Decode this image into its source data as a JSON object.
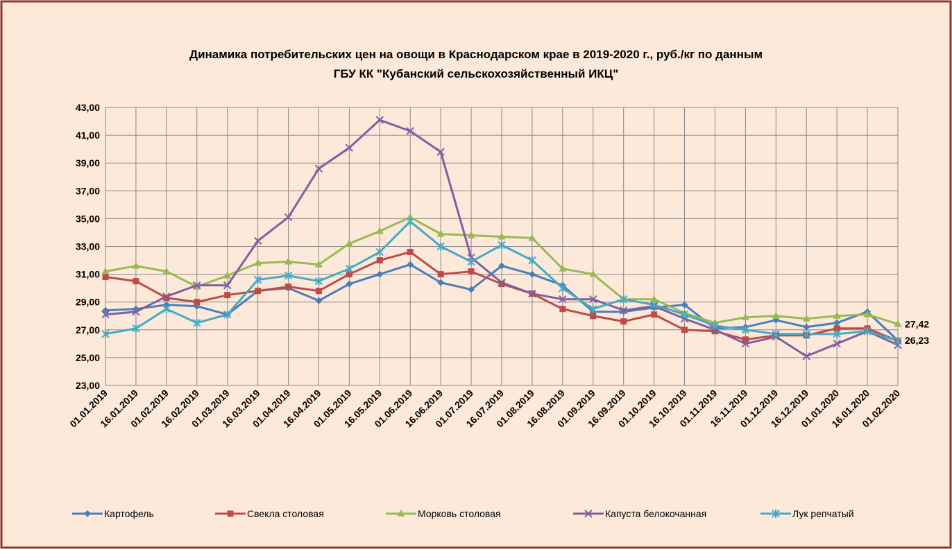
{
  "chart_data": {
    "type": "line",
    "title": [
      "Динамика потребительских цен на овощи в Краснодарском крае в 2019-2020 г., руб./кг по данным",
      "ГБУ КК \"Кубанский сельскохозяйственный ИКЦ\""
    ],
    "categories": [
      "01.01.2019",
      "16.01.2019",
      "01.02.2019",
      "16.02.2019",
      "01.03.2019",
      "16.03.2019",
      "01.04.2019",
      "16.04.2019",
      "01.05.2019",
      "16.05.2019",
      "01.06.2019",
      "16.06.2019",
      "01.07.2019",
      "16.07.2019",
      "01.08.2019",
      "16.08.2019",
      "01.09.2019",
      "16.09.2019",
      "01.10.2019",
      "16.10.2019",
      "01.11.2019",
      "16.11.2019",
      "01.12.2019",
      "16.12.2019",
      "01.01.2020",
      "16.01.2020",
      "01.02.2020"
    ],
    "ylim": [
      23,
      43
    ],
    "yticks": [
      {
        "value": 23,
        "label": "23,00"
      },
      {
        "value": 25,
        "label": "25,00"
      },
      {
        "value": 27,
        "label": "27,00"
      },
      {
        "value": 29,
        "label": "29,00"
      },
      {
        "value": 31,
        "label": "31,00"
      },
      {
        "value": 33,
        "label": "33,00"
      },
      {
        "value": 35,
        "label": "35,00"
      },
      {
        "value": 37,
        "label": "37,00"
      },
      {
        "value": 39,
        "label": "39,00"
      },
      {
        "value": 41,
        "label": "41,00"
      },
      {
        "value": 43,
        "label": "43,00"
      }
    ],
    "grid": true,
    "series": [
      {
        "name": "Картофель",
        "color": "#4a7ebb",
        "marker": "diamond",
        "values": [
          28.4,
          28.5,
          28.8,
          28.7,
          28.1,
          29.8,
          30.0,
          29.1,
          30.3,
          31.0,
          31.7,
          30.4,
          29.9,
          31.6,
          31.0,
          30.2,
          28.3,
          28.3,
          28.6,
          28.8,
          27.1,
          27.2,
          27.7,
          27.2,
          27.5,
          28.3,
          26.23
        ],
        "value_labels": [
          null,
          null,
          null,
          null,
          null,
          null,
          null,
          null,
          null,
          null,
          null,
          null,
          null,
          null,
          null,
          null,
          null,
          null,
          null,
          null,
          null,
          null,
          null,
          null,
          null,
          null,
          "26,23"
        ]
      },
      {
        "name": "Свекла столовая",
        "color": "#be4b48",
        "marker": "square",
        "values": [
          30.8,
          30.5,
          29.3,
          29.0,
          29.5,
          29.8,
          30.1,
          29.8,
          31.0,
          32.0,
          32.6,
          31.0,
          31.2,
          30.3,
          29.6,
          28.5,
          28.0,
          27.6,
          28.1,
          27.0,
          26.9,
          26.3,
          26.6,
          26.6,
          27.1,
          27.1,
          26.2
        ]
      },
      {
        "name": "Морковь столовая",
        "color": "#98b954",
        "marker": "triangle",
        "values": [
          31.2,
          31.6,
          31.2,
          30.1,
          30.9,
          31.8,
          31.9,
          31.7,
          33.2,
          34.1,
          35.1,
          33.9,
          33.8,
          33.7,
          33.6,
          31.4,
          31.0,
          29.2,
          29.2,
          28.2,
          27.5,
          27.9,
          28.0,
          27.8,
          28.0,
          28.1,
          27.42
        ],
        "value_labels": [
          null,
          null,
          null,
          null,
          null,
          null,
          null,
          null,
          null,
          null,
          null,
          null,
          null,
          null,
          null,
          null,
          null,
          null,
          null,
          null,
          null,
          null,
          null,
          null,
          null,
          null,
          "27,42"
        ]
      },
      {
        "name": "Капуста белокочанная",
        "color": "#7d60a0",
        "marker": "x",
        "values": [
          28.1,
          28.3,
          29.4,
          30.2,
          30.2,
          33.4,
          35.1,
          38.6,
          40.1,
          42.1,
          41.3,
          39.8,
          32.2,
          30.4,
          29.6,
          29.2,
          29.2,
          28.4,
          28.7,
          27.8,
          27.0,
          26.0,
          26.5,
          25.1,
          26.0,
          26.9,
          25.9
        ]
      },
      {
        "name": "Лук репчатый",
        "color": "#46aac5",
        "marker": "star",
        "values": [
          26.7,
          27.1,
          28.5,
          27.5,
          28.1,
          30.6,
          30.9,
          30.5,
          31.4,
          32.6,
          34.8,
          33.0,
          31.9,
          33.1,
          32.0,
          30.0,
          28.5,
          29.2,
          28.8,
          28.1,
          27.3,
          27.0,
          26.7,
          26.7,
          26.7,
          26.9,
          26.2
        ]
      }
    ]
  }
}
